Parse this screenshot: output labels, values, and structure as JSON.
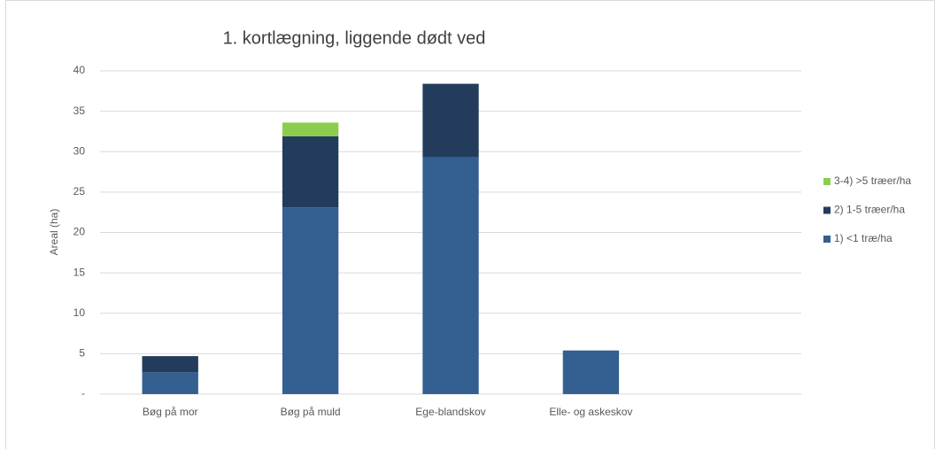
{
  "chart_data": {
    "type": "bar",
    "stacked": true,
    "title": "1. kortlægning, liggende dødt ved",
    "y_label": "Areal (ha)",
    "categories": [
      "Bøg på mor",
      "Bøg på muld",
      "Ege-blandskov",
      "Elle- og askeskov",
      null
    ],
    "series": [
      {
        "name": "1) <1 træ/ha",
        "color": "#335f91",
        "values": [
          2.7,
          23.1,
          29.3,
          5.4,
          null
        ]
      },
      {
        "name": "2) 1-5 træer/ha",
        "color": "#243c5c",
        "values": [
          2.0,
          8.8,
          9.1,
          null,
          null
        ]
      },
      {
        "name": "3-4) >5 træer/ha",
        "color": "#8ccd4f",
        "values": [
          null,
          1.7,
          null,
          null,
          null
        ]
      }
    ],
    "ylim": [
      0,
      40
    ],
    "yticks": [
      {
        "value": 0,
        "label": "-"
      },
      5,
      10,
      15,
      20,
      25,
      30,
      35,
      40
    ],
    "grid": true,
    "legend": "right"
  }
}
